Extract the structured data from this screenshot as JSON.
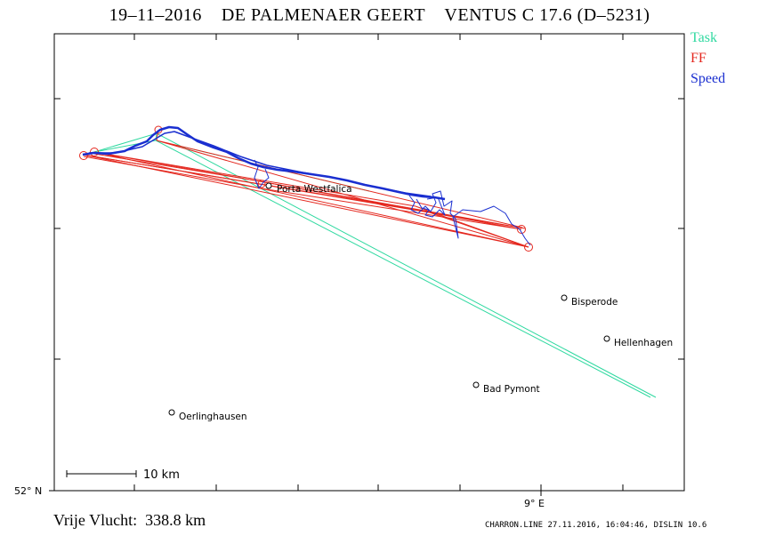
{
  "title": "19–11–2016    DE PALMENAER GEERT    VENTUS C 17.6 (D–5231)",
  "legend": [
    {
      "label": "Task",
      "color": "#2fd9a0"
    },
    {
      "label": "FF",
      "color": "#e4281f"
    },
    {
      "label": "Speed",
      "color": "#1a2fd0"
    }
  ],
  "places": [
    {
      "name": "Porta Westfalica"
    },
    {
      "name": "Bisperode"
    },
    {
      "name": "Hellenhagen"
    },
    {
      "name": "Bad Pymont"
    },
    {
      "name": "Oerlinghausen"
    }
  ],
  "axes": {
    "lat_label": "52° N",
    "lon_label": "9° E"
  },
  "scale_bar": "10  km",
  "footer_left": "Vrije Vlucht:  338.8 km",
  "footer_right": "CHARRON.LINE 27.11.2016, 16:04:46, DISLIN 10.6",
  "colors": {
    "task": "#2fd9a0",
    "ff": "#e4281f",
    "speed": "#1a2fd0",
    "frame": "#000000"
  }
}
